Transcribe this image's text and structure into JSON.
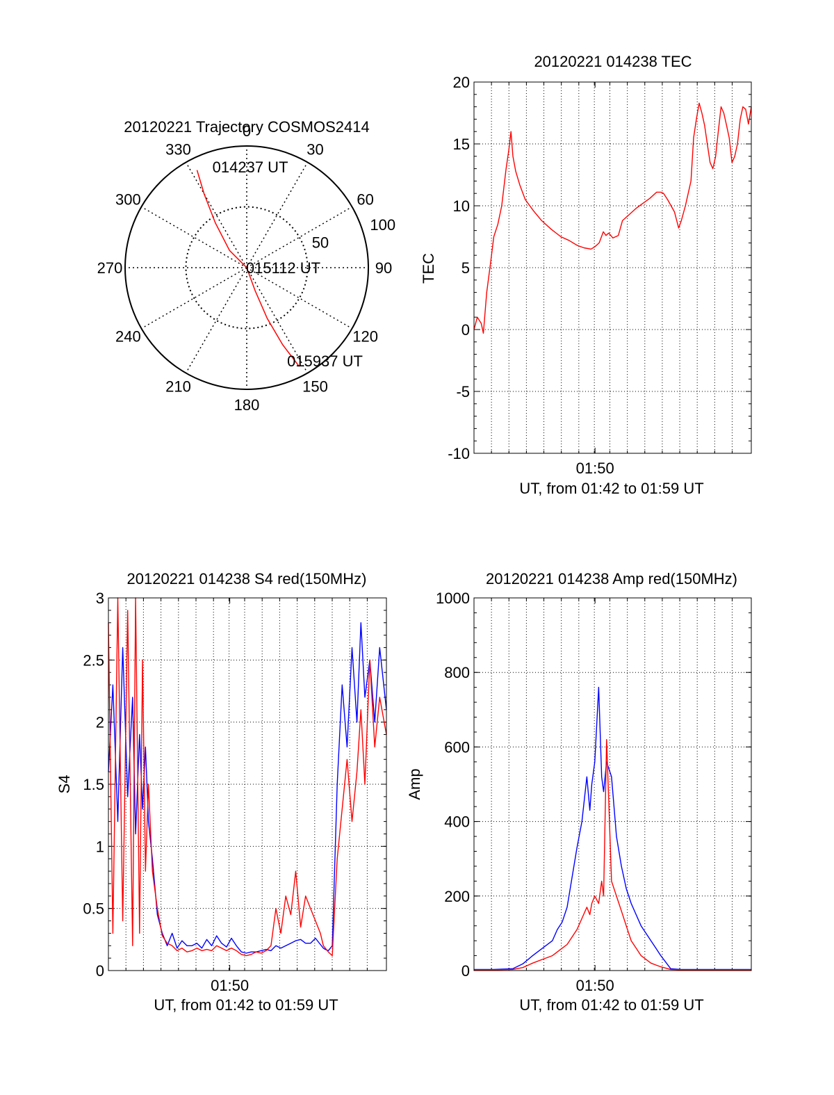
{
  "chart_data": [
    {
      "id": "polar",
      "type": "scatter",
      "title": "20120221 Trajectory COSMOS2414",
      "angle_labels": [
        "0",
        "30",
        "60",
        "90",
        "120",
        "150",
        "180",
        "210",
        "240",
        "270",
        "300",
        "330"
      ],
      "radius_labels": [
        "50",
        "100"
      ],
      "rlim": [
        0,
        100
      ],
      "grid": true,
      "series": [
        {
          "color": "#ff0000",
          "points": [
            [
              333,
              90
            ],
            [
              330,
              70
            ],
            [
              325,
              45
            ],
            [
              315,
              20
            ],
            [
              0,
              0
            ],
            [
              160,
              20
            ],
            [
              158,
              45
            ],
            [
              155,
              70
            ],
            [
              152,
              92
            ]
          ]
        }
      ],
      "annotations": [
        {
          "text": "014237 UT",
          "angle": 2,
          "r": 83
        },
        {
          "text": "015112 UT",
          "angle": 90,
          "r": 30
        },
        {
          "text": "015937 UT",
          "angle": 140,
          "r": 100
        }
      ]
    },
    {
      "id": "tec",
      "type": "line",
      "title": "20120221 014238 TEC",
      "xlabel": "UT, from 01:42 to 01:59 UT",
      "ylabel": "TEC",
      "xlim": [
        1.7105,
        1.9918
      ],
      "ylim": [
        -10,
        20
      ],
      "yticks": [
        "-10",
        "-5",
        "0",
        "5",
        "10",
        "15",
        "20"
      ],
      "xtick_labels": [
        {
          "x": 1.8333,
          "label": "01:50"
        }
      ],
      "grid": true,
      "series": [
        {
          "color": "#ff0000",
          "x": [
            1.7105,
            1.7139,
            1.7178,
            1.72,
            1.7234,
            1.7275,
            1.7306,
            1.7347,
            1.7386,
            1.7431,
            1.7458,
            1.748,
            1.75,
            1.7528,
            1.7569,
            1.7625,
            1.7708,
            1.7792,
            1.7889,
            1.7986,
            1.8069,
            1.8153,
            1.8222,
            1.8292,
            1.8333,
            1.8375,
            1.8417,
            1.8444,
            1.8472,
            1.8514,
            1.8569,
            1.8611,
            1.8681,
            1.875,
            1.8819,
            1.8889,
            1.8958,
            1.9,
            1.9028,
            1.9069,
            1.9139,
            1.9181,
            1.9208,
            1.925,
            1.9278,
            1.9306,
            1.9333,
            1.9361,
            1.9389,
            1.9417,
            1.9444,
            1.9472,
            1.95,
            1.9528,
            1.9556,
            1.9583,
            1.9611,
            1.9639,
            1.9667,
            1.9694,
            1.9722,
            1.975,
            1.9778,
            1.9806,
            1.9833,
            1.9861,
            1.9889,
            1.9918
          ],
          "y": [
            0,
            1,
            0.5,
            -0.3,
            3,
            5.5,
            7.5,
            8.5,
            10,
            13,
            14.5,
            16,
            14,
            12.8,
            11.7,
            10.5,
            9.6,
            8.8,
            8.1,
            7.5,
            7.2,
            6.8,
            6.6,
            6.5,
            6.7,
            7,
            7.9,
            7.6,
            7.8,
            7.4,
            7.6,
            8.8,
            9.3,
            9.8,
            10.2,
            10.6,
            11.1,
            11.1,
            11,
            10.5,
            9.5,
            8.2,
            8.8,
            10,
            11,
            12,
            15.5,
            17,
            18.3,
            17.5,
            16.5,
            15,
            13.5,
            13,
            14,
            16,
            18,
            17.5,
            16.5,
            15.5,
            13.5,
            14,
            15,
            17,
            18,
            17.8,
            16.6,
            18
          ]
        }
      ]
    },
    {
      "id": "s4",
      "type": "line",
      "title": "20120221 014238 S4 red(150MHz)",
      "xlabel": "UT, from 01:42 to 01:59 UT",
      "ylabel": "S4",
      "xlim": [
        1.7105,
        1.9918
      ],
      "ylim": [
        0,
        3
      ],
      "yticks": [
        "0",
        "0.5",
        "1",
        "1.5",
        "2",
        "2.5",
        "3"
      ],
      "xtick_labels": [
        {
          "x": 1.8333,
          "label": "01:50"
        }
      ],
      "grid": true,
      "series": [
        {
          "color": "#0000ff",
          "x": [
            1.7105,
            1.715,
            1.72,
            1.725,
            1.73,
            1.735,
            1.738,
            1.742,
            1.745,
            1.748,
            1.751,
            1.755,
            1.76,
            1.765,
            1.77,
            1.775,
            1.78,
            1.785,
            1.79,
            1.795,
            1.8,
            1.805,
            1.81,
            1.815,
            1.82,
            1.825,
            1.83,
            1.835,
            1.84,
            1.845,
            1.85,
            1.855,
            1.86,
            1.865,
            1.87,
            1.875,
            1.88,
            1.885,
            1.89,
            1.895,
            1.9,
            1.905,
            1.91,
            1.915,
            1.92,
            1.925,
            1.928,
            1.93,
            1.933,
            1.937,
            1.942,
            1.947,
            1.952,
            1.957,
            1.962,
            1.966,
            1.97,
            1.975,
            1.98,
            1.985,
            1.9918
          ],
          "y": [
            1.6,
            2.3,
            1.2,
            2.6,
            1.4,
            2.2,
            1.1,
            1.9,
            1.3,
            1.8,
            1.2,
            0.9,
            0.45,
            0.3,
            0.2,
            0.3,
            0.18,
            0.24,
            0.2,
            0.2,
            0.22,
            0.18,
            0.25,
            0.2,
            0.28,
            0.22,
            0.19,
            0.26,
            0.2,
            0.15,
            0.14,
            0.15,
            0.15,
            0.16,
            0.17,
            0.16,
            0.2,
            0.18,
            0.2,
            0.22,
            0.24,
            0.25,
            0.22,
            0.22,
            0.26,
            0.21,
            0.18,
            0.17,
            0.16,
            0.2,
            1.5,
            2.3,
            1.8,
            2.6,
            2.0,
            2.8,
            2.2,
            2.5,
            2.0,
            2.6,
            2.1
          ]
        },
        {
          "color": "#ff0000",
          "x": [
            1.7105,
            1.715,
            1.72,
            1.725,
            1.73,
            1.735,
            1.738,
            1.742,
            1.745,
            1.748,
            1.751,
            1.755,
            1.76,
            1.765,
            1.77,
            1.775,
            1.78,
            1.785,
            1.79,
            1.795,
            1.8,
            1.805,
            1.81,
            1.815,
            1.82,
            1.825,
            1.83,
            1.835,
            1.84,
            1.845,
            1.85,
            1.855,
            1.86,
            1.865,
            1.87,
            1.875,
            1.88,
            1.885,
            1.89,
            1.895,
            1.9,
            1.905,
            1.91,
            1.915,
            1.92,
            1.925,
            1.928,
            1.93,
            1.933,
            1.937,
            1.942,
            1.947,
            1.952,
            1.957,
            1.962,
            1.966,
            1.97,
            1.975,
            1.98,
            1.985,
            1.9918
          ],
          "y": [
            2.8,
            0.3,
            3.0,
            0.4,
            2.9,
            0.2,
            3.0,
            0.3,
            2.5,
            0.8,
            1.5,
            0.8,
            0.5,
            0.28,
            0.22,
            0.2,
            0.16,
            0.18,
            0.15,
            0.16,
            0.18,
            0.16,
            0.17,
            0.16,
            0.2,
            0.18,
            0.16,
            0.18,
            0.16,
            0.13,
            0.12,
            0.13,
            0.15,
            0.14,
            0.16,
            0.2,
            0.5,
            0.3,
            0.6,
            0.45,
            0.8,
            0.35,
            0.6,
            0.5,
            0.4,
            0.3,
            0.2,
            0.18,
            0.15,
            0.12,
            0.9,
            1.3,
            1.7,
            1.2,
            1.6,
            2.1,
            1.5,
            2.5,
            1.8,
            2.2,
            1.9
          ]
        }
      ]
    },
    {
      "id": "amp",
      "type": "line",
      "title": "20120221 014238 Amp red(150MHz)",
      "xlabel": "UT, from 01:42 to 01:59 UT",
      "ylabel": "Amp",
      "xlim": [
        1.7105,
        1.9918
      ],
      "ylim": [
        0,
        1000
      ],
      "yticks": [
        "0",
        "200",
        "400",
        "600",
        "800",
        "1000"
      ],
      "xtick_labels": [
        {
          "x": 1.8333,
          "label": "01:50"
        }
      ],
      "grid": true,
      "series": [
        {
          "color": "#0000ff",
          "x": [
            1.7105,
            1.73,
            1.75,
            1.76,
            1.77,
            1.78,
            1.79,
            1.795,
            1.8,
            1.805,
            1.81,
            1.815,
            1.82,
            1.825,
            1.828,
            1.83,
            1.833,
            1.837,
            1.84,
            1.842,
            1.845,
            1.85,
            1.855,
            1.86,
            1.865,
            1.87,
            1.875,
            1.88,
            1.885,
            1.89,
            1.895,
            1.9,
            1.91,
            1.92,
            1.93,
            1.94,
            1.95,
            1.96,
            1.97,
            1.98,
            1.9918
          ],
          "y": [
            3,
            3,
            5,
            18,
            40,
            60,
            80,
            110,
            130,
            170,
            250,
            330,
            400,
            520,
            430,
            500,
            560,
            760,
            520,
            480,
            560,
            520,
            360,
            280,
            220,
            180,
            150,
            120,
            100,
            80,
            60,
            40,
            5,
            3,
            3,
            3,
            3,
            3,
            3,
            3,
            3
          ]
        },
        {
          "color": "#ff0000",
          "x": [
            1.7105,
            1.73,
            1.75,
            1.76,
            1.77,
            1.78,
            1.79,
            1.795,
            1.8,
            1.805,
            1.81,
            1.815,
            1.82,
            1.825,
            1.828,
            1.83,
            1.833,
            1.837,
            1.84,
            1.842,
            1.845,
            1.85,
            1.855,
            1.86,
            1.865,
            1.87,
            1.875,
            1.88,
            1.885,
            1.89,
            1.895,
            1.9,
            1.91,
            1.92,
            1.93,
            1.94,
            1.95,
            1.96,
            1.97,
            1.98,
            1.9918
          ],
          "y": [
            2,
            2,
            3,
            8,
            20,
            30,
            40,
            50,
            60,
            70,
            90,
            110,
            140,
            170,
            150,
            180,
            200,
            180,
            240,
            200,
            620,
            240,
            200,
            160,
            120,
            80,
            60,
            40,
            30,
            20,
            15,
            10,
            3,
            2,
            2,
            2,
            2,
            2,
            2,
            2,
            2
          ]
        }
      ]
    }
  ]
}
